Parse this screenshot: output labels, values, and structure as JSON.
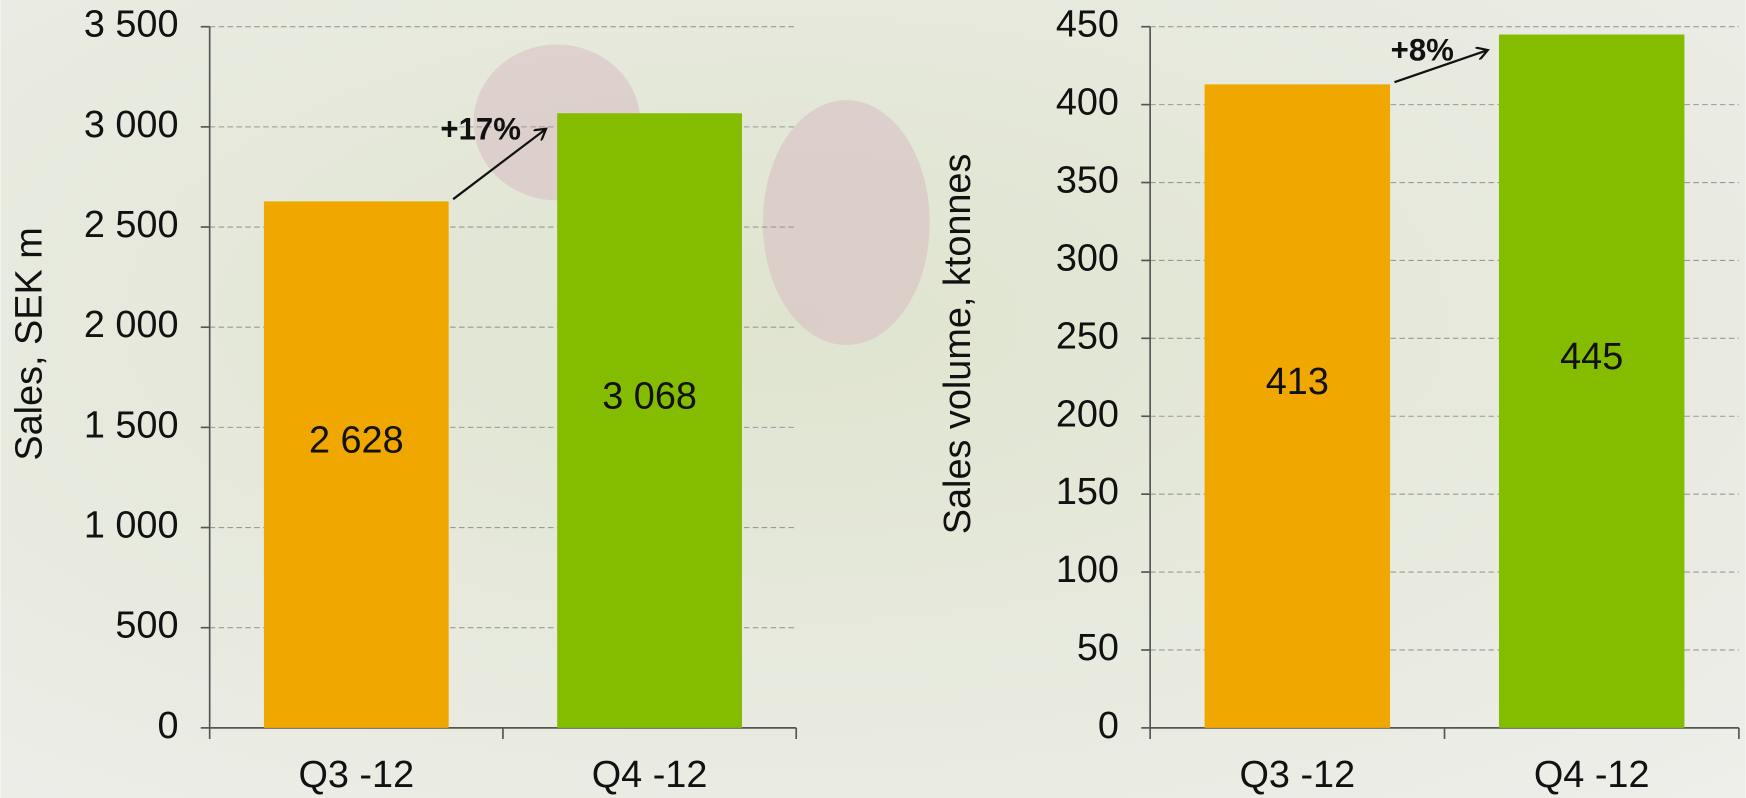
{
  "chart_data": [
    {
      "type": "bar",
      "y_label": "Sales, SEK m",
      "categories": [
        "Q3 -12",
        "Q4 -12"
      ],
      "values": [
        2628,
        3068
      ],
      "value_labels": [
        "2 628",
        "3 068"
      ],
      "colors": [
        "#f0a800",
        "#84bc00"
      ],
      "ylim": [
        0,
        3500
      ],
      "yticks": [
        0,
        500,
        {
          "value": 1000,
          "label": "1 000"
        },
        {
          "value": 1500,
          "label": "1 500"
        },
        {
          "value": 2000,
          "label": "2 000"
        },
        {
          "value": 2500,
          "label": "2 500"
        },
        {
          "value": 3000,
          "label": "3 000"
        },
        {
          "value": 3500,
          "label": "3 500"
        }
      ],
      "grid": true,
      "annotation": "+17%"
    },
    {
      "type": "bar",
      "y_label": "Sales volume, ktonnes",
      "categories": [
        "Q3 -12",
        "Q4 -12"
      ],
      "values": [
        413,
        445
      ],
      "colors": [
        "#f0a800",
        "#84bc00"
      ],
      "ylim": [
        0,
        450
      ],
      "yticks": [
        0,
        50,
        100,
        150,
        200,
        250,
        300,
        350,
        400,
        450
      ],
      "grid": true,
      "annotation": "+8%"
    }
  ]
}
